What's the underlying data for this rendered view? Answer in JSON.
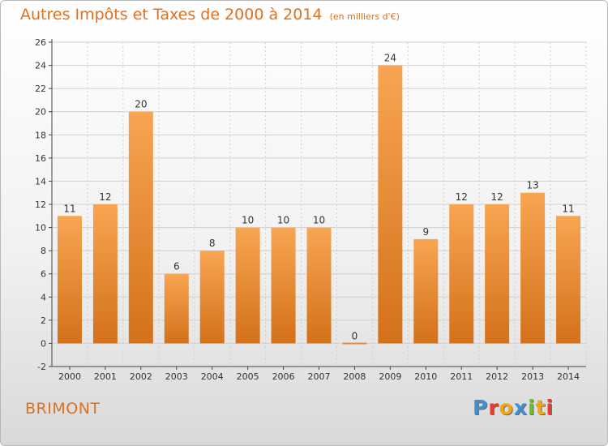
{
  "title": "Autres Impôts et Taxes de 2000 à 2014",
  "subtitle": "(en milliers d'€)",
  "location": "BRIMONT",
  "logo": {
    "text": "Proxiti",
    "letter_colors": [
      "#3d8fd6",
      "#e83b2b",
      "#f2a516",
      "#3d8fd6",
      "#6cbf2a",
      "#f2a516",
      "#e83b2b"
    ]
  },
  "colors": {
    "bar_top": "#f8a552",
    "bar_bottom": "#d4711a",
    "text_accent": "#e0701e",
    "axis": "#444444",
    "grid": "#d0d0d0"
  },
  "chart_data": {
    "type": "bar",
    "categories": [
      "2000",
      "2001",
      "2002",
      "2003",
      "2004",
      "2005",
      "2006",
      "2007",
      "2008",
      "2009",
      "2010",
      "2011",
      "2012",
      "2013",
      "2014"
    ],
    "values": [
      11,
      12,
      20,
      6,
      8,
      10,
      10,
      10,
      0,
      24,
      9,
      12,
      12,
      13,
      11
    ],
    "data_labels": [
      "11",
      "12",
      "20",
      "6",
      "8",
      "10",
      "10",
      "10",
      "0",
      "24",
      "9",
      "12",
      "12",
      "13",
      "11"
    ],
    "y_ticks": [
      -2,
      0,
      2,
      4,
      6,
      8,
      10,
      12,
      14,
      16,
      18,
      20,
      22,
      24,
      26
    ],
    "y_tick_labels": [
      "-2",
      "0",
      "2",
      "4",
      "6",
      "8",
      "10",
      "12",
      "14",
      "16",
      "18",
      "20",
      "22",
      "24",
      "26"
    ],
    "ylim": [
      -2,
      26
    ],
    "grid": true,
    "legend": "none"
  }
}
